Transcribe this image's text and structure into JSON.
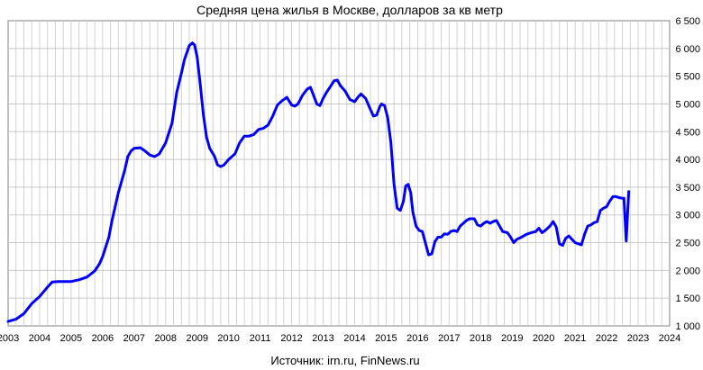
{
  "chart_data": {
    "type": "line",
    "title": "Средняя цена жилья в Москве, долларов за кв метр",
    "source": "Источник: irn.ru, FinNews.ru",
    "xlabel": "",
    "ylabel": "",
    "xlim": [
      2003,
      2024
    ],
    "ylim": [
      1000,
      6500
    ],
    "x_ticks": [
      "2003",
      "2004",
      "2005",
      "2006",
      "2007",
      "2008",
      "2009",
      "2010",
      "2011",
      "2012",
      "2013",
      "2014",
      "2015",
      "2016",
      "2017",
      "2018",
      "2019",
      "2020",
      "2021",
      "2022",
      "2023",
      "2024"
    ],
    "y_ticks": [
      "1 000",
      "1 500",
      "2 000",
      "2 500",
      "3 000",
      "3 500",
      "4 000",
      "4 500",
      "5 000",
      "5 500",
      "6 000",
      "6 500"
    ],
    "y_tick_values": [
      1000,
      1500,
      2000,
      2500,
      3000,
      3500,
      4000,
      4500,
      5000,
      5500,
      6000,
      6500
    ],
    "grid": true,
    "line_color": "#0000ff",
    "series": [
      {
        "points": [
          [
            2003.0,
            1080
          ],
          [
            2003.25,
            1120
          ],
          [
            2003.5,
            1220
          ],
          [
            2003.75,
            1400
          ],
          [
            2004.0,
            1530
          ],
          [
            2004.25,
            1700
          ],
          [
            2004.4,
            1790
          ],
          [
            2004.6,
            1800
          ],
          [
            2004.9,
            1800
          ],
          [
            2005.0,
            1800
          ],
          [
            2005.25,
            1830
          ],
          [
            2005.5,
            1880
          ],
          [
            2005.75,
            1990
          ],
          [
            2005.9,
            2120
          ],
          [
            2006.0,
            2250
          ],
          [
            2006.2,
            2600
          ],
          [
            2006.3,
            2900
          ],
          [
            2006.5,
            3400
          ],
          [
            2006.7,
            3800
          ],
          [
            2006.8,
            4050
          ],
          [
            2006.9,
            4150
          ],
          [
            2007.0,
            4200
          ],
          [
            2007.2,
            4210
          ],
          [
            2007.35,
            4150
          ],
          [
            2007.5,
            4080
          ],
          [
            2007.65,
            4050
          ],
          [
            2007.8,
            4100
          ],
          [
            2008.0,
            4300
          ],
          [
            2008.2,
            4650
          ],
          [
            2008.35,
            5200
          ],
          [
            2008.5,
            5550
          ],
          [
            2008.6,
            5800
          ],
          [
            2008.75,
            6050
          ],
          [
            2008.85,
            6100
          ],
          [
            2008.92,
            6060
          ],
          [
            2009.0,
            5850
          ],
          [
            2009.1,
            5350
          ],
          [
            2009.2,
            4800
          ],
          [
            2009.3,
            4400
          ],
          [
            2009.4,
            4200
          ],
          [
            2009.55,
            4060
          ],
          [
            2009.65,
            3900
          ],
          [
            2009.75,
            3870
          ],
          [
            2009.85,
            3900
          ],
          [
            2010.0,
            4000
          ],
          [
            2010.2,
            4100
          ],
          [
            2010.35,
            4300
          ],
          [
            2010.5,
            4420
          ],
          [
            2010.65,
            4420
          ],
          [
            2010.8,
            4450
          ],
          [
            2010.95,
            4540
          ],
          [
            2011.1,
            4560
          ],
          [
            2011.25,
            4620
          ],
          [
            2011.4,
            4780
          ],
          [
            2011.55,
            4980
          ],
          [
            2011.7,
            5060
          ],
          [
            2011.85,
            5120
          ],
          [
            2012.0,
            4980
          ],
          [
            2012.1,
            4960
          ],
          [
            2012.2,
            5000
          ],
          [
            2012.35,
            5160
          ],
          [
            2012.5,
            5270
          ],
          [
            2012.6,
            5300
          ],
          [
            2012.7,
            5150
          ],
          [
            2012.8,
            5000
          ],
          [
            2012.9,
            4970
          ],
          [
            2013.0,
            5100
          ],
          [
            2013.1,
            5200
          ],
          [
            2013.25,
            5330
          ],
          [
            2013.35,
            5420
          ],
          [
            2013.45,
            5430
          ],
          [
            2013.55,
            5330
          ],
          [
            2013.7,
            5230
          ],
          [
            2013.85,
            5080
          ],
          [
            2014.0,
            5040
          ],
          [
            2014.1,
            5120
          ],
          [
            2014.2,
            5180
          ],
          [
            2014.35,
            5100
          ],
          [
            2014.5,
            4900
          ],
          [
            2014.6,
            4780
          ],
          [
            2014.7,
            4800
          ],
          [
            2014.8,
            4950
          ],
          [
            2014.85,
            5000
          ],
          [
            2014.95,
            4970
          ],
          [
            2015.05,
            4750
          ],
          [
            2015.15,
            4300
          ],
          [
            2015.25,
            3550
          ],
          [
            2015.35,
            3120
          ],
          [
            2015.45,
            3080
          ],
          [
            2015.55,
            3250
          ],
          [
            2015.62,
            3520
          ],
          [
            2015.7,
            3550
          ],
          [
            2015.78,
            3400
          ],
          [
            2015.85,
            3050
          ],
          [
            2015.95,
            2800
          ],
          [
            2016.05,
            2720
          ],
          [
            2016.15,
            2700
          ],
          [
            2016.25,
            2490
          ],
          [
            2016.35,
            2280
          ],
          [
            2016.45,
            2300
          ],
          [
            2016.55,
            2520
          ],
          [
            2016.65,
            2600
          ],
          [
            2016.75,
            2600
          ],
          [
            2016.85,
            2660
          ],
          [
            2016.95,
            2650
          ],
          [
            2017.05,
            2700
          ],
          [
            2017.15,
            2720
          ],
          [
            2017.25,
            2700
          ],
          [
            2017.35,
            2800
          ],
          [
            2017.45,
            2850
          ],
          [
            2017.55,
            2900
          ],
          [
            2017.65,
            2930
          ],
          [
            2017.8,
            2930
          ],
          [
            2017.9,
            2820
          ],
          [
            2018.0,
            2800
          ],
          [
            2018.1,
            2850
          ],
          [
            2018.2,
            2880
          ],
          [
            2018.3,
            2850
          ],
          [
            2018.4,
            2880
          ],
          [
            2018.5,
            2900
          ],
          [
            2018.6,
            2800
          ],
          [
            2018.7,
            2700
          ],
          [
            2018.85,
            2680
          ],
          [
            2018.95,
            2600
          ],
          [
            2019.05,
            2500
          ],
          [
            2019.15,
            2560
          ],
          [
            2019.3,
            2600
          ],
          [
            2019.45,
            2650
          ],
          [
            2019.6,
            2680
          ],
          [
            2019.75,
            2700
          ],
          [
            2019.85,
            2760
          ],
          [
            2019.95,
            2680
          ],
          [
            2020.05,
            2720
          ],
          [
            2020.2,
            2800
          ],
          [
            2020.3,
            2880
          ],
          [
            2020.4,
            2780
          ],
          [
            2020.5,
            2480
          ],
          [
            2020.6,
            2450
          ],
          [
            2020.7,
            2580
          ],
          [
            2020.8,
            2620
          ],
          [
            2020.9,
            2560
          ],
          [
            2021.0,
            2500
          ],
          [
            2021.1,
            2480
          ],
          [
            2021.2,
            2460
          ],
          [
            2021.3,
            2650
          ],
          [
            2021.4,
            2800
          ],
          [
            2021.5,
            2820
          ],
          [
            2021.6,
            2860
          ],
          [
            2021.7,
            2880
          ],
          [
            2021.8,
            3080
          ],
          [
            2021.9,
            3120
          ],
          [
            2022.0,
            3150
          ],
          [
            2022.1,
            3250
          ],
          [
            2022.2,
            3330
          ],
          [
            2022.3,
            3330
          ],
          [
            2022.4,
            3310
          ],
          [
            2022.5,
            3300
          ],
          [
            2022.55,
            3300
          ],
          [
            2022.62,
            2530
          ],
          [
            2022.7,
            3420
          ]
        ]
      }
    ]
  }
}
